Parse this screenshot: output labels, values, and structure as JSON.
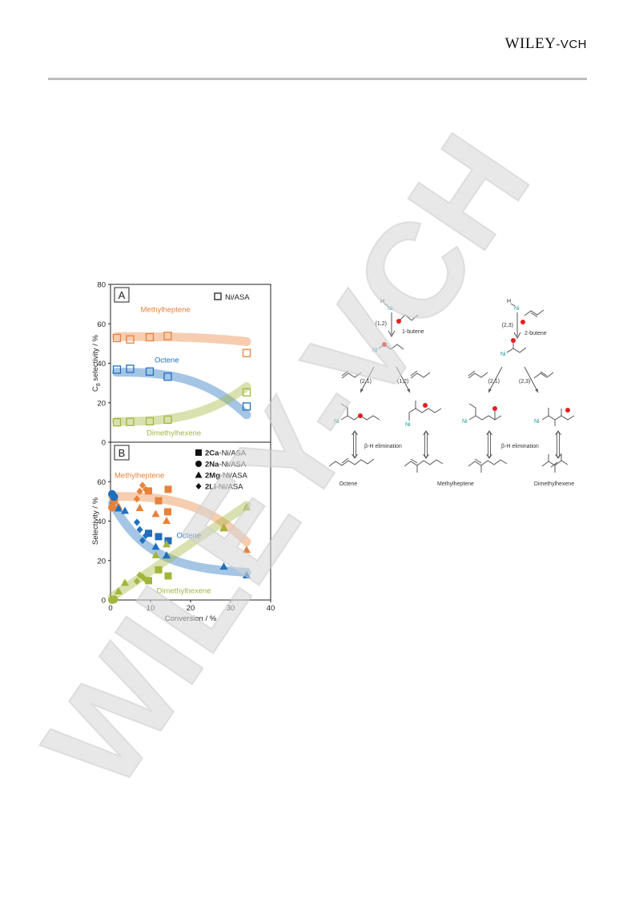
{
  "header": {
    "publisher_main": "Wiley",
    "publisher_suffix": "-VCH"
  },
  "watermark_text": "WILEY-VCH",
  "chart_data": [
    {
      "type": "scatter",
      "panel_label": "A",
      "ylabel_main": "C",
      "ylabel_sub": "8",
      "ylabel_rest": " selectivity / %",
      "xlim": [
        0,
        40
      ],
      "ylim": [
        0,
        80
      ],
      "yticks": [
        "0",
        "20",
        "40",
        "60",
        "80"
      ],
      "legend": [
        {
          "marker": "open-square",
          "label": "Ni/ASA"
        }
      ],
      "series": [
        {
          "name": "Methylheptene",
          "color": "#e8813a",
          "x": [
            1.6,
            4.9,
            9.8,
            14.3,
            34
          ],
          "y": [
            52.8,
            52.1,
            53.2,
            53.9,
            45.2
          ]
        },
        {
          "name": "Octene",
          "color": "#1f6fbf",
          "x": [
            1.6,
            4.9,
            9.8,
            14.3,
            34
          ],
          "y": [
            36.8,
            37.2,
            35.8,
            33.2,
            18.1
          ]
        },
        {
          "name": "Dimethylhexene",
          "color": "#a3b53a",
          "x": [
            1.6,
            4.9,
            9.8,
            14.3,
            34
          ],
          "y": [
            10.1,
            10.3,
            10.6,
            11.4,
            25.3
          ]
        }
      ]
    },
    {
      "type": "scatter",
      "panel_label": "B",
      "ylabel": "Selectivity / %",
      "xlabel": "Conversion / %",
      "xlim": [
        0,
        40
      ],
      "ylim": [
        0,
        80
      ],
      "xticks": [
        "0",
        "10",
        "20",
        "30",
        "40"
      ],
      "yticks": [
        "0",
        "20",
        "40",
        "60"
      ],
      "legend": [
        {
          "marker": "square",
          "bold": "2Ca",
          "rest": "-Ni/ASA"
        },
        {
          "marker": "circle",
          "bold": "2Na",
          "rest": "-Ni/ASA"
        },
        {
          "marker": "triangle",
          "bold": "2Mg",
          "rest": "-Ni/ASA"
        },
        {
          "marker": "diamond",
          "bold": "2Li",
          "rest": "-Ni/ASA"
        }
      ],
      "series": [
        {
          "name": "Methylheptene",
          "color": "#e8813a",
          "points": [
            {
              "m": "square",
              "x": 9.5,
              "y": 55.3
            },
            {
              "m": "square",
              "x": 12,
              "y": 50.3
            },
            {
              "m": "square",
              "x": 14.4,
              "y": 56.1
            },
            {
              "m": "square",
              "x": 14.3,
              "y": 44.7
            },
            {
              "m": "circle",
              "x": 0.4,
              "y": 46.9
            },
            {
              "m": "circle",
              "x": 0.9,
              "y": 50.2
            },
            {
              "m": "triangle",
              "x": 2,
              "y": 47.5
            },
            {
              "m": "triangle",
              "x": 7.3,
              "y": 46.7
            },
            {
              "m": "triangle",
              "x": 11.3,
              "y": 43.7
            },
            {
              "m": "triangle",
              "x": 14,
              "y": 40.2
            },
            {
              "m": "triangle",
              "x": 28.3,
              "y": 36.8
            },
            {
              "m": "triangle",
              "x": 34,
              "y": 25.5
            },
            {
              "m": "diamond",
              "x": 6.6,
              "y": 51.2
            },
            {
              "m": "diamond",
              "x": 7.3,
              "y": 55.1
            },
            {
              "m": "diamond",
              "x": 8,
              "y": 58.1
            },
            {
              "m": "diamond",
              "x": 8.8,
              "y": 56
            }
          ]
        },
        {
          "name": "Octene",
          "color": "#1f6fbf",
          "points": [
            {
              "m": "square",
              "x": 9.5,
              "y": 33.8
            },
            {
              "m": "square",
              "x": 12,
              "y": 32.1
            },
            {
              "m": "square",
              "x": 14.4,
              "y": 30
            },
            {
              "m": "circle",
              "x": 0.4,
              "y": 53.7
            },
            {
              "m": "circle",
              "x": 0.9,
              "y": 52.3
            },
            {
              "m": "triangle",
              "x": 2,
              "y": 46.5
            },
            {
              "m": "triangle",
              "x": 3.6,
              "y": 45.3
            },
            {
              "m": "triangle",
              "x": 11.3,
              "y": 27.1
            },
            {
              "m": "triangle",
              "x": 14,
              "y": 22.7
            },
            {
              "m": "triangle",
              "x": 28.3,
              "y": 17
            },
            {
              "m": "triangle",
              "x": 34,
              "y": 12.6
            },
            {
              "m": "diamond",
              "x": 6.6,
              "y": 39.4
            },
            {
              "m": "diamond",
              "x": 7.3,
              "y": 35.7
            },
            {
              "m": "diamond",
              "x": 8,
              "y": 30.2
            },
            {
              "m": "diamond",
              "x": 8.8,
              "y": 32.7
            }
          ]
        },
        {
          "name": "Dimethylhexene",
          "color": "#a3b53a",
          "points": [
            {
              "m": "square",
              "x": 9.5,
              "y": 9.8
            },
            {
              "m": "square",
              "x": 12,
              "y": 15.3
            },
            {
              "m": "square",
              "x": 14.4,
              "y": 12.2
            },
            {
              "m": "circle",
              "x": 0.4,
              "y": 0
            },
            {
              "m": "circle",
              "x": 0.9,
              "y": 0.3
            },
            {
              "m": "triangle",
              "x": 2,
              "y": 4.5
            },
            {
              "m": "triangle",
              "x": 3.6,
              "y": 8.8
            },
            {
              "m": "triangle",
              "x": 11.3,
              "y": 22.8
            },
            {
              "m": "triangle",
              "x": 14,
              "y": 28.3
            },
            {
              "m": "triangle",
              "x": 28.3,
              "y": 36.4
            },
            {
              "m": "triangle",
              "x": 34,
              "y": 47
            },
            {
              "m": "diamond",
              "x": 6.6,
              "y": 9.5
            },
            {
              "m": "diamond",
              "x": 7.3,
              "y": 12.6
            },
            {
              "m": "diamond",
              "x": 8,
              "y": 11.8
            },
            {
              "m": "diamond",
              "x": 8.8,
              "y": 10.2
            }
          ]
        }
      ]
    }
  ],
  "scheme": {
    "h": "H",
    "ni": "Ni",
    "path_12": "(1,2)",
    "path_23": "(2,3)",
    "path_21": "(2,1)",
    "butene1": "1-butene",
    "butene2": "2-butene",
    "beta_h": "β-H elimination",
    "products": [
      "Octene",
      "Methylheptene",
      "Dimethylhexene"
    ]
  },
  "colors": {
    "ni_teal": "#1a9aa0",
    "radical_red": "#e32020",
    "bond_gray": "#555555"
  }
}
